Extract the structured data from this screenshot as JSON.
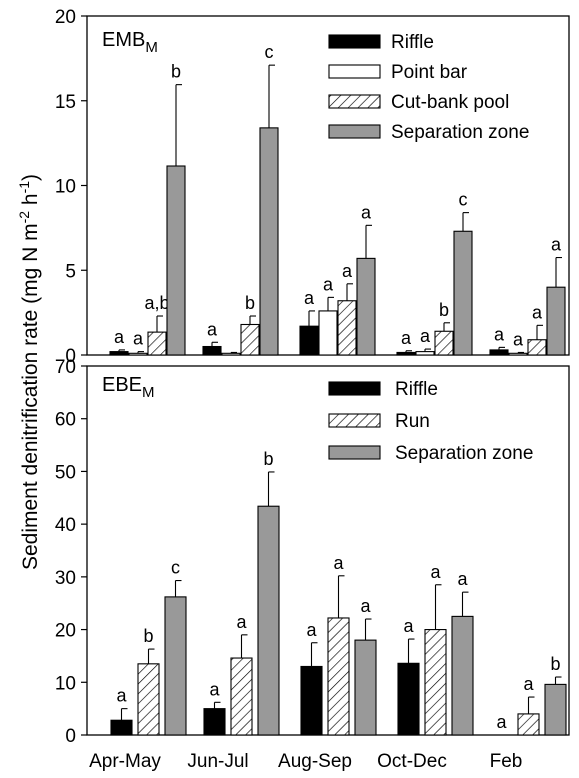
{
  "chart_data": [
    {
      "type": "bar",
      "panel_label": "EMB",
      "panel_label_sub": "M",
      "ylim": [
        0,
        20
      ],
      "yticks": [
        0,
        5,
        10,
        15,
        20
      ],
      "ylabel": "Sediment denitrification rate (mg N m-2 h-1)",
      "categories": [
        "Apr-May",
        "Jun-Jul",
        "Aug-Sep",
        "Oct-Dec",
        "Feb"
      ],
      "legend_position": "top-right",
      "series": [
        {
          "name": "Riffle",
          "style": "black",
          "values": [
            0.2,
            0.5,
            1.7,
            0.15,
            0.3
          ],
          "errors": [
            0.1,
            0.25,
            0.9,
            0.1,
            0.15
          ],
          "letters": [
            "a",
            "a",
            "a",
            "a",
            "a"
          ]
        },
        {
          "name": "Point bar",
          "style": "white",
          "values": [
            0.1,
            0.1,
            2.6,
            0.2,
            0.1
          ],
          "errors": [
            0.1,
            0.05,
            0.8,
            0.15,
            0.05
          ],
          "letters": [
            "a",
            "",
            "a",
            "a",
            "a"
          ]
        },
        {
          "name": "Cut-bank pool",
          "style": "hatch",
          "values": [
            1.35,
            1.8,
            3.2,
            1.4,
            0.9
          ],
          "errors": [
            0.95,
            0.5,
            1.0,
            0.5,
            0.85
          ],
          "letters": [
            "a,b",
            "b",
            "a",
            "b",
            "a"
          ]
        },
        {
          "name": "Separation zone",
          "style": "gray",
          "values": [
            11.15,
            13.4,
            5.7,
            7.3,
            4.0
          ],
          "errors": [
            4.8,
            3.7,
            1.95,
            1.1,
            1.75
          ],
          "letters": [
            "b",
            "c",
            "a",
            "c",
            "a"
          ]
        }
      ]
    },
    {
      "type": "bar",
      "panel_label": "EBE",
      "panel_label_sub": "M",
      "ylim": [
        0,
        70
      ],
      "yticks": [
        0,
        10,
        20,
        30,
        40,
        50,
        60,
        70
      ],
      "categories": [
        "Apr-May",
        "Jun-Jul",
        "Aug-Sep",
        "Oct-Dec",
        "Feb"
      ],
      "legend_position": "top-right",
      "series": [
        {
          "name": "Riffle",
          "style": "black",
          "values": [
            2.8,
            5.0,
            13.0,
            13.6,
            0
          ],
          "errors": [
            2.2,
            1.2,
            4.5,
            4.6,
            0
          ],
          "letters": [
            "a",
            "a",
            "a",
            "a",
            "a"
          ]
        },
        {
          "name": "Run",
          "style": "hatch",
          "values": [
            13.5,
            14.6,
            22.2,
            20.0,
            4.0
          ],
          "errors": [
            2.8,
            4.4,
            8.0,
            8.5,
            3.2
          ],
          "letters": [
            "b",
            "a",
            "a",
            "a",
            "a"
          ]
        },
        {
          "name": "Separation zone",
          "style": "gray",
          "values": [
            26.2,
            43.4,
            18.0,
            22.5,
            9.6
          ],
          "errors": [
            3.1,
            6.5,
            4.0,
            4.6,
            1.4
          ],
          "letters": [
            "c",
            "b",
            "a",
            "a",
            "b"
          ]
        }
      ]
    }
  ]
}
